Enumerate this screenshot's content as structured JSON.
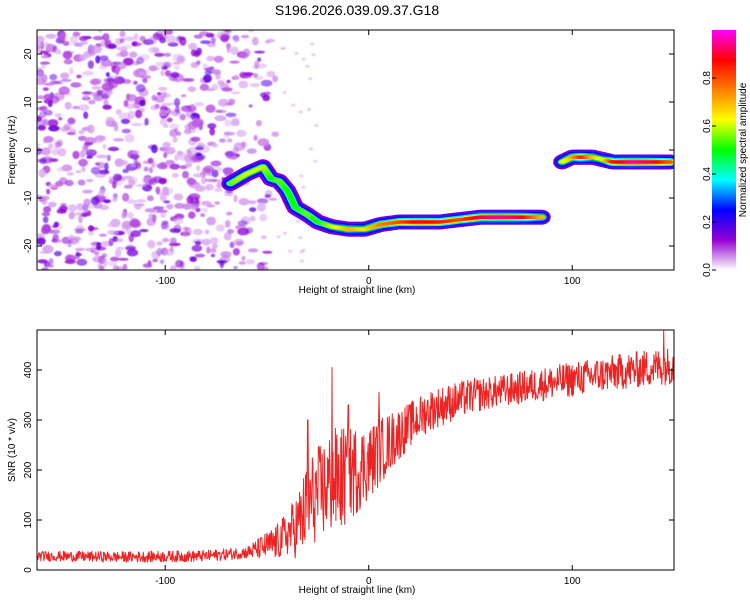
{
  "page_title": "S196.2026.039.09.37.G18",
  "chart_data": [
    {
      "type": "heatmap",
      "title": "S196.2026.039.09.37.G18",
      "xlabel": "Height of straight line (km)",
      "ylabel": "Frequency (Hz)",
      "xlim": [
        -163,
        150
      ],
      "ylim": [
        -25,
        25
      ],
      "xticks": [
        -100,
        0,
        100
      ],
      "yticks": [
        -20,
        -10,
        0,
        10,
        20
      ],
      "colorbar": {
        "label": "Normalized spectral amplitude",
        "range": [
          0,
          1
        ],
        "ticks": [
          "0.0",
          "0.2",
          "0.4",
          "0.6",
          "0.8"
        ],
        "tick_values": [
          0,
          0.2,
          0.4,
          0.6,
          0.8
        ],
        "colors": [
          "#ffffff",
          "#9400d3",
          "#0000ff",
          "#00ffff",
          "#00ff00",
          "#ffff00",
          "#ff7f00",
          "#ff0000",
          "#ff00ff"
        ]
      },
      "noise_region_x": [
        -163,
        -45
      ],
      "ridge": [
        {
          "x": -68,
          "y": -7,
          "v": 0.55
        },
        {
          "x": -60,
          "y": -5,
          "v": 0.6
        },
        {
          "x": -52,
          "y": -3.5,
          "v": 0.6
        },
        {
          "x": -48,
          "y": -6,
          "v": 0.5
        },
        {
          "x": -44,
          "y": -6.5,
          "v": 0.55
        },
        {
          "x": -40,
          "y": -8.5,
          "v": 0.5
        },
        {
          "x": -36,
          "y": -12,
          "v": 0.5
        },
        {
          "x": -30,
          "y": -13.5,
          "v": 0.55
        },
        {
          "x": -25,
          "y": -15,
          "v": 0.5
        },
        {
          "x": -18,
          "y": -16,
          "v": 0.6
        },
        {
          "x": -10,
          "y": -16.5,
          "v": 0.7
        },
        {
          "x": -2,
          "y": -16.5,
          "v": 0.65
        },
        {
          "x": 6,
          "y": -15.5,
          "v": 0.75
        },
        {
          "x": 15,
          "y": -15,
          "v": 0.8
        },
        {
          "x": 25,
          "y": -15,
          "v": 0.9
        },
        {
          "x": 35,
          "y": -15,
          "v": 0.85
        },
        {
          "x": 45,
          "y": -14.5,
          "v": 0.8
        },
        {
          "x": 55,
          "y": -14,
          "v": 0.9
        },
        {
          "x": 65,
          "y": -14,
          "v": 0.95
        },
        {
          "x": 75,
          "y": -14,
          "v": 0.9
        },
        {
          "x": 85,
          "y": -14,
          "v": 0.7
        },
        {
          "x": 95,
          "y": -2.5,
          "v": 0.6
        },
        {
          "x": 100,
          "y": -1.5,
          "v": 0.7
        },
        {
          "x": 105,
          "y": -1.5,
          "v": 0.85
        },
        {
          "x": 110,
          "y": -1.5,
          "v": 0.7
        },
        {
          "x": 115,
          "y": -2,
          "v": 0.6
        },
        {
          "x": 120,
          "y": -2.5,
          "v": 0.85
        },
        {
          "x": 130,
          "y": -2.5,
          "v": 0.95
        },
        {
          "x": 140,
          "y": -2.5,
          "v": 0.9
        },
        {
          "x": 148,
          "y": -2.5,
          "v": 0.8
        }
      ]
    },
    {
      "type": "line",
      "title": "",
      "xlabel": "Height of straight line (km)",
      "ylabel": "SNR (10 * v/v)",
      "xlim": [
        -163,
        150
      ],
      "ylim": [
        0,
        480
      ],
      "xticks": [
        -100,
        0,
        100
      ],
      "yticks": [
        0,
        100,
        200,
        300,
        400
      ],
      "color": "#ee2222",
      "trend": [
        {
          "x": -163,
          "snr": 28
        },
        {
          "x": -120,
          "snr": 26
        },
        {
          "x": -80,
          "snr": 28
        },
        {
          "x": -60,
          "snr": 35
        },
        {
          "x": -45,
          "snr": 55
        },
        {
          "x": -35,
          "snr": 90
        },
        {
          "x": -28,
          "snr": 140
        },
        {
          "x": -20,
          "snr": 170
        },
        {
          "x": -10,
          "snr": 190
        },
        {
          "x": 0,
          "snr": 215
        },
        {
          "x": 10,
          "snr": 255
        },
        {
          "x": 20,
          "snr": 290
        },
        {
          "x": 30,
          "snr": 320
        },
        {
          "x": 50,
          "snr": 348
        },
        {
          "x": 80,
          "snr": 368
        },
        {
          "x": 110,
          "snr": 388
        },
        {
          "x": 130,
          "snr": 400
        },
        {
          "x": 150,
          "snr": 410
        }
      ],
      "noise": [
        {
          "x": -163,
          "amp": 10
        },
        {
          "x": -60,
          "amp": 12
        },
        {
          "x": -40,
          "amp": 45
        },
        {
          "x": -30,
          "amp": 90
        },
        {
          "x": -15,
          "amp": 110
        },
        {
          "x": 0,
          "amp": 75
        },
        {
          "x": 20,
          "amp": 45
        },
        {
          "x": 60,
          "amp": 32
        },
        {
          "x": 150,
          "amp": 38
        }
      ],
      "peaks": [
        {
          "x": -18,
          "snr": 405
        },
        {
          "x": -30,
          "snr": 300
        },
        {
          "x": -10,
          "snr": 330
        },
        {
          "x": 5,
          "snr": 355
        },
        {
          "x": 145,
          "snr": 480
        }
      ]
    }
  ]
}
